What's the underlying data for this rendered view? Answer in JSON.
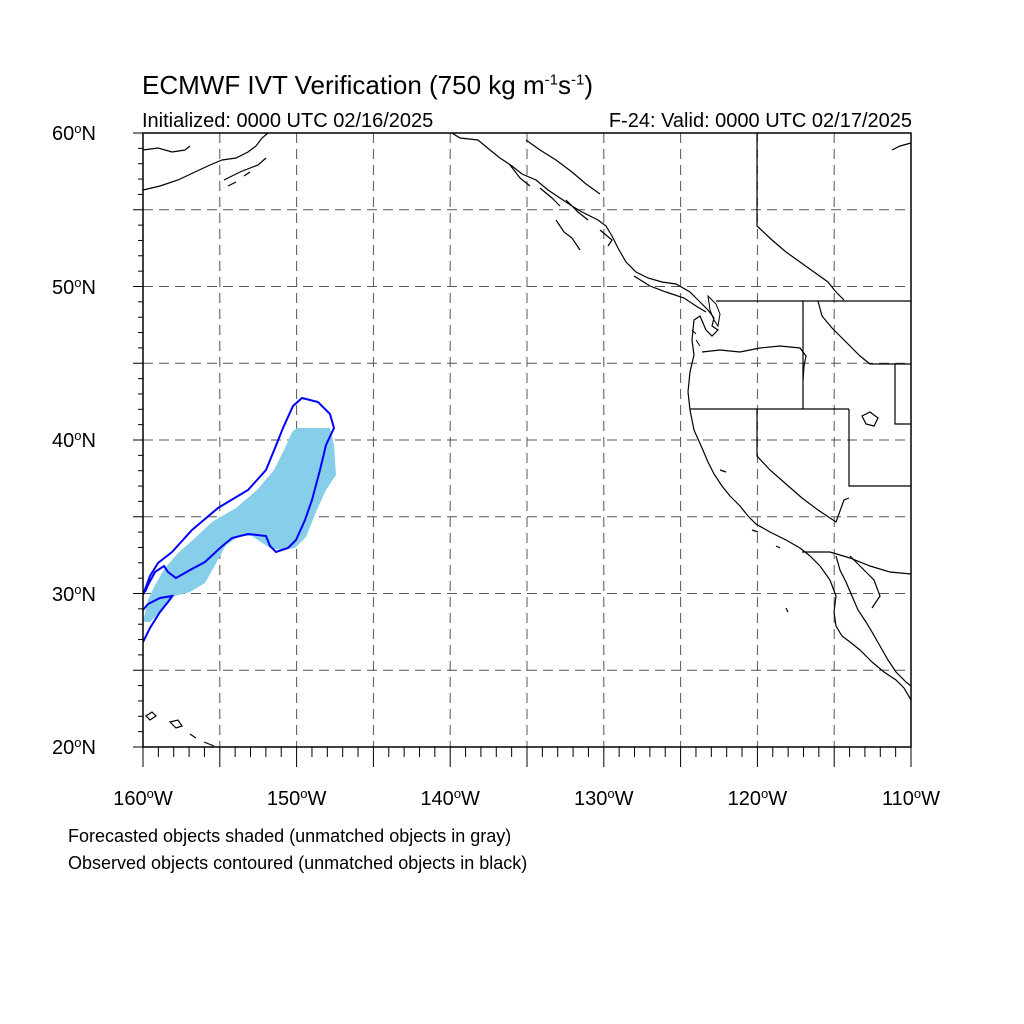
{
  "title": {
    "main": "ECMWF IVT Verification (750 kg m",
    "exp1": "-1",
    "mid": "s",
    "exp2": "-1",
    "end": ")"
  },
  "subtitle": {
    "initialized": "Initialized: 0000 UTC 02/16/2025",
    "valid": "F-24: Valid: 0000 UTC 02/17/2025"
  },
  "map": {
    "lon_range": [
      -160,
      -110
    ],
    "lat_range": [
      20,
      60
    ],
    "lat_labels": [
      {
        "value": 60,
        "text": "60",
        "hemi": "N"
      },
      {
        "value": 50,
        "text": "50",
        "hemi": "N"
      },
      {
        "value": 40,
        "text": "40",
        "hemi": "N"
      },
      {
        "value": 30,
        "text": "30",
        "hemi": "N"
      },
      {
        "value": 20,
        "text": "20",
        "hemi": "N"
      }
    ],
    "lon_labels": [
      {
        "value": -160,
        "text": "160",
        "hemi": "W"
      },
      {
        "value": -150,
        "text": "150",
        "hemi": "W"
      },
      {
        "value": -140,
        "text": "140",
        "hemi": "W"
      },
      {
        "value": -130,
        "text": "130",
        "hemi": "W"
      },
      {
        "value": -120,
        "text": "120",
        "hemi": "W"
      },
      {
        "value": -110,
        "text": "110",
        "hemi": "W"
      }
    ],
    "degree_symbol": "o",
    "grid_lines": "dashed every 5 degrees",
    "colors": {
      "forecast_fill": "#87ceeb",
      "observed_contour": "#0000ff",
      "coastline": "#000000",
      "grid": "#555555"
    }
  },
  "notes": {
    "line1": "Forecasted objects shaded (unmatched objects in gray)",
    "line2": "Observed objects contoured (unmatched objects in black)"
  }
}
